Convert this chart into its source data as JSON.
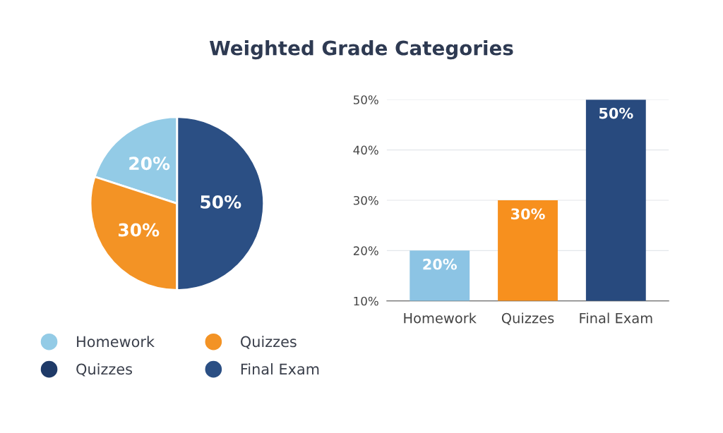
{
  "chart_data": [
    {
      "type": "pie",
      "title": "Weighted Grade Categories",
      "categories": [
        "Homework",
        "Quizzes",
        "Quizzes",
        "Final Exam"
      ],
      "values": [
        20,
        30,
        0,
        50
      ],
      "colors": [
        "#93cbe6",
        "#f39325",
        "#1f3a68",
        "#2b4f84"
      ],
      "value_labels": [
        "20%",
        "30%",
        null,
        "50%"
      ],
      "legend": "bottom"
    },
    {
      "type": "bar",
      "categories": [
        "Homework",
        "Quizzes",
        "Final Exam"
      ],
      "values": [
        20,
        30,
        50
      ],
      "colors": [
        "#8cc4e4",
        "#f7901e",
        "#284a7e"
      ],
      "value_labels": [
        "20%",
        "30%",
        "50%"
      ],
      "ylim": [
        10,
        50
      ],
      "yticks": [
        {
          "value": 10,
          "label": "10%"
        },
        {
          "value": 20,
          "label": "20%"
        },
        {
          "value": 30,
          "label": "30%"
        },
        {
          "value": 40,
          "label": "40%"
        },
        {
          "value": 50,
          "label": "50%"
        }
      ],
      "grid": "y"
    }
  ]
}
